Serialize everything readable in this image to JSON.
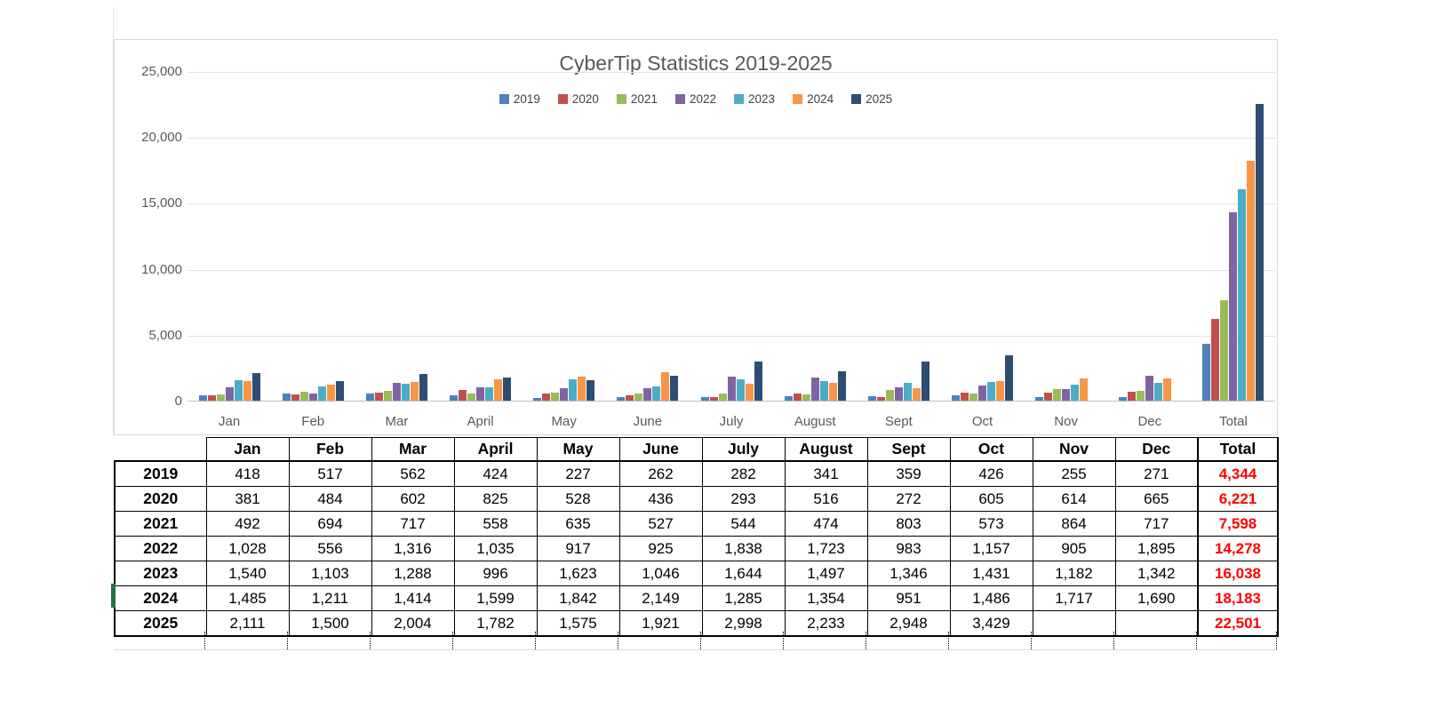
{
  "chart_data": {
    "type": "bar",
    "title": "CyberTip Statistics 2019-2025",
    "categories": [
      "Jan",
      "Feb",
      "Mar",
      "April",
      "May",
      "June",
      "July",
      "August",
      "Sept",
      "Oct",
      "Nov",
      "Dec",
      "Total"
    ],
    "series": [
      {
        "name": "2019",
        "color": "#4F81BD",
        "values": [
          418,
          517,
          562,
          424,
          227,
          262,
          282,
          341,
          359,
          426,
          255,
          271,
          4344
        ]
      },
      {
        "name": "2020",
        "color": "#C0504D",
        "values": [
          381,
          484,
          602,
          825,
          528,
          436,
          293,
          516,
          272,
          605,
          614,
          665,
          6221
        ]
      },
      {
        "name": "2021",
        "color": "#9BBB59",
        "values": [
          492,
          694,
          717,
          558,
          635,
          527,
          544,
          474,
          803,
          573,
          864,
          717,
          7598
        ]
      },
      {
        "name": "2022",
        "color": "#8064A2",
        "values": [
          1028,
          556,
          1316,
          1035,
          917,
          925,
          1838,
          1723,
          983,
          1157,
          905,
          1895,
          14278
        ]
      },
      {
        "name": "2023",
        "color": "#4BACC6",
        "values": [
          1540,
          1103,
          1288,
          996,
          1623,
          1046,
          1644,
          1497,
          1346,
          1431,
          1182,
          1342,
          16038
        ]
      },
      {
        "name": "2024",
        "color": "#F79646",
        "values": [
          1485,
          1211,
          1414,
          1599,
          1842,
          2149,
          1285,
          1354,
          951,
          1486,
          1717,
          1690,
          18183
        ]
      },
      {
        "name": "2025",
        "color": "#2D4D73",
        "values": [
          2111,
          1500,
          2004,
          1782,
          1575,
          1921,
          2998,
          2233,
          2948,
          3429,
          null,
          null,
          22501
        ]
      }
    ],
    "xlabel": "",
    "ylabel": "",
    "ylim": [
      0,
      25000
    ],
    "y_tick_step": 5000,
    "y_tick_labels": [
      "0",
      "5,000",
      "10,000",
      "15,000",
      "20,000",
      "25,000"
    ],
    "grid": true,
    "legend_position": "top"
  },
  "table": {
    "col_headers": [
      "",
      "Jan",
      "Feb",
      "Mar",
      "April",
      "May",
      "June",
      "July",
      "August",
      "Sept",
      "Oct",
      "Nov",
      "Dec",
      "Total"
    ],
    "rows": [
      {
        "year": "2019",
        "values": [
          "418",
          "517",
          "562",
          "424",
          "227",
          "262",
          "282",
          "341",
          "359",
          "426",
          "255",
          "271"
        ],
        "total": "4,344"
      },
      {
        "year": "2020",
        "values": [
          "381",
          "484",
          "602",
          "825",
          "528",
          "436",
          "293",
          "516",
          "272",
          "605",
          "614",
          "665"
        ],
        "total": "6,221"
      },
      {
        "year": "2021",
        "values": [
          "492",
          "694",
          "717",
          "558",
          "635",
          "527",
          "544",
          "474",
          "803",
          "573",
          "864",
          "717"
        ],
        "total": "7,598"
      },
      {
        "year": "2022",
        "values": [
          "1,028",
          "556",
          "1,316",
          "1,035",
          "917",
          "925",
          "1,838",
          "1,723",
          "983",
          "1,157",
          "905",
          "1,895"
        ],
        "total": "14,278"
      },
      {
        "year": "2023",
        "values": [
          "1,540",
          "1,103",
          "1,288",
          "996",
          "1,623",
          "1,046",
          "1,644",
          "1,497",
          "1,346",
          "1,431",
          "1,182",
          "1,342"
        ],
        "total": "16,038"
      },
      {
        "year": "2024",
        "values": [
          "1,485",
          "1,211",
          "1,414",
          "1,599",
          "1,842",
          "2,149",
          "1,285",
          "1,354",
          "951",
          "1,486",
          "1,717",
          "1,690"
        ],
        "total": "18,183"
      },
      {
        "year": "2025",
        "values": [
          "2,111",
          "1,500",
          "2,004",
          "1,782",
          "1,575",
          "1,921",
          "2,998",
          "2,233",
          "2,948",
          "3,429",
          "",
          ""
        ],
        "total": "22,501"
      }
    ],
    "total_color": "#FF0000"
  }
}
